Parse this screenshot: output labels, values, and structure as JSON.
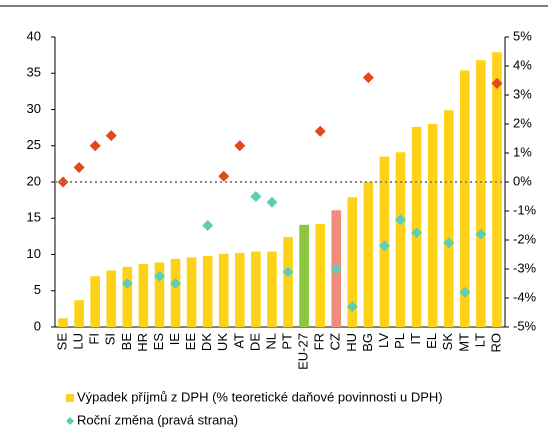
{
  "chart_data": {
    "type": "bar_diamond",
    "categories": [
      "SE",
      "LU",
      "FI",
      "SI",
      "BE",
      "HR",
      "ES",
      "IE",
      "EE",
      "DK",
      "UK",
      "AT",
      "DE",
      "NL",
      "PT",
      "EU-27",
      "FR",
      "CZ",
      "HU",
      "BG",
      "LV",
      "PL",
      "IT",
      "EL",
      "SK",
      "MT",
      "LT",
      "RO"
    ],
    "series": [
      {
        "name": "Výpadek příjmů z DPH (% teoretické daňové povinnosti u DPH)",
        "color": "#ffd21a",
        "colors": [
          "#ffd21a",
          "#ffd21a",
          "#ffd21a",
          "#ffd21a",
          "#ffd21a",
          "#ffd21a",
          "#ffd21a",
          "#ffd21a",
          "#ffd21a",
          "#ffd21a",
          "#ffd21a",
          "#ffd21a",
          "#ffd21a",
          "#ffd21a",
          "#ffd21a",
          "#8cc63f",
          "#ffd21a",
          "#f08c7a",
          "#ffd21a",
          "#ffd21a",
          "#ffd21a",
          "#ffd21a",
          "#ffd21a",
          "#ffd21a",
          "#ffd21a",
          "#ffd21a",
          "#ffd21a",
          "#ffd21a"
        ],
        "values": [
          1.2,
          3.7,
          7,
          7.8,
          8.3,
          8.7,
          8.9,
          9.4,
          9.6,
          9.8,
          10.1,
          10.2,
          10.4,
          10.4,
          12.4,
          14.1,
          14.2,
          16.1,
          17.9,
          20,
          23.5,
          24.1,
          27.6,
          28,
          29.9,
          35.4,
          36.8,
          37.9
        ]
      },
      {
        "name": "Roční změna (pravá strana)",
        "color": "#5ecdb5",
        "axis": "y2",
        "colors": [
          "#e2491a",
          "#e2491a",
          "#e2491a",
          "#e2491a",
          "#5ecdb5",
          null,
          "#5ecdb5",
          "#5ecdb5",
          null,
          "#5ecdb5",
          "#e2491a",
          "#e2491a",
          "#5ecdb5",
          "#5ecdb5",
          "#5ecdb5",
          null,
          "#e2491a",
          "#5ecdb5",
          "#5ecdb5",
          "#e2491a",
          "#5ecdb5",
          "#5ecdb5",
          "#5ecdb5",
          null,
          "#5ecdb5",
          "#5ecdb5",
          "#5ecdb5",
          "#e2491a"
        ],
        "values": [
          0,
          0.5,
          1.25,
          1.6,
          -3.5,
          null,
          -3.25,
          -3.5,
          null,
          -1.5,
          0.2,
          1.25,
          -0.5,
          -0.7,
          -3.1,
          null,
          1.75,
          -3,
          -4.3,
          3.6,
          -2.2,
          -1.3,
          -1.75,
          null,
          -2.1,
          -3.8,
          -1.8,
          3.4
        ]
      }
    ],
    "ylim": [
      0,
      40
    ],
    "yticks": [
      0,
      5,
      10,
      15,
      20,
      25,
      30,
      35,
      40
    ],
    "y2lim": [
      -5,
      5
    ],
    "y2ticks": [
      {
        "value": -5,
        "label": "-5%"
      },
      {
        "value": -4,
        "label": "-4%"
      },
      {
        "value": -3,
        "label": "-3%"
      },
      {
        "value": -2,
        "label": "-2%"
      },
      {
        "value": -1,
        "label": "-1%"
      },
      {
        "value": 0,
        "label": "0%"
      },
      {
        "value": 1,
        "label": "1%"
      },
      {
        "value": 2,
        "label": "2%"
      },
      {
        "value": 3,
        "label": "3%"
      },
      {
        "value": 4,
        "label": "4%"
      },
      {
        "value": 5,
        "label": "5%"
      }
    ],
    "zero_line": true,
    "legend": "bottom"
  }
}
